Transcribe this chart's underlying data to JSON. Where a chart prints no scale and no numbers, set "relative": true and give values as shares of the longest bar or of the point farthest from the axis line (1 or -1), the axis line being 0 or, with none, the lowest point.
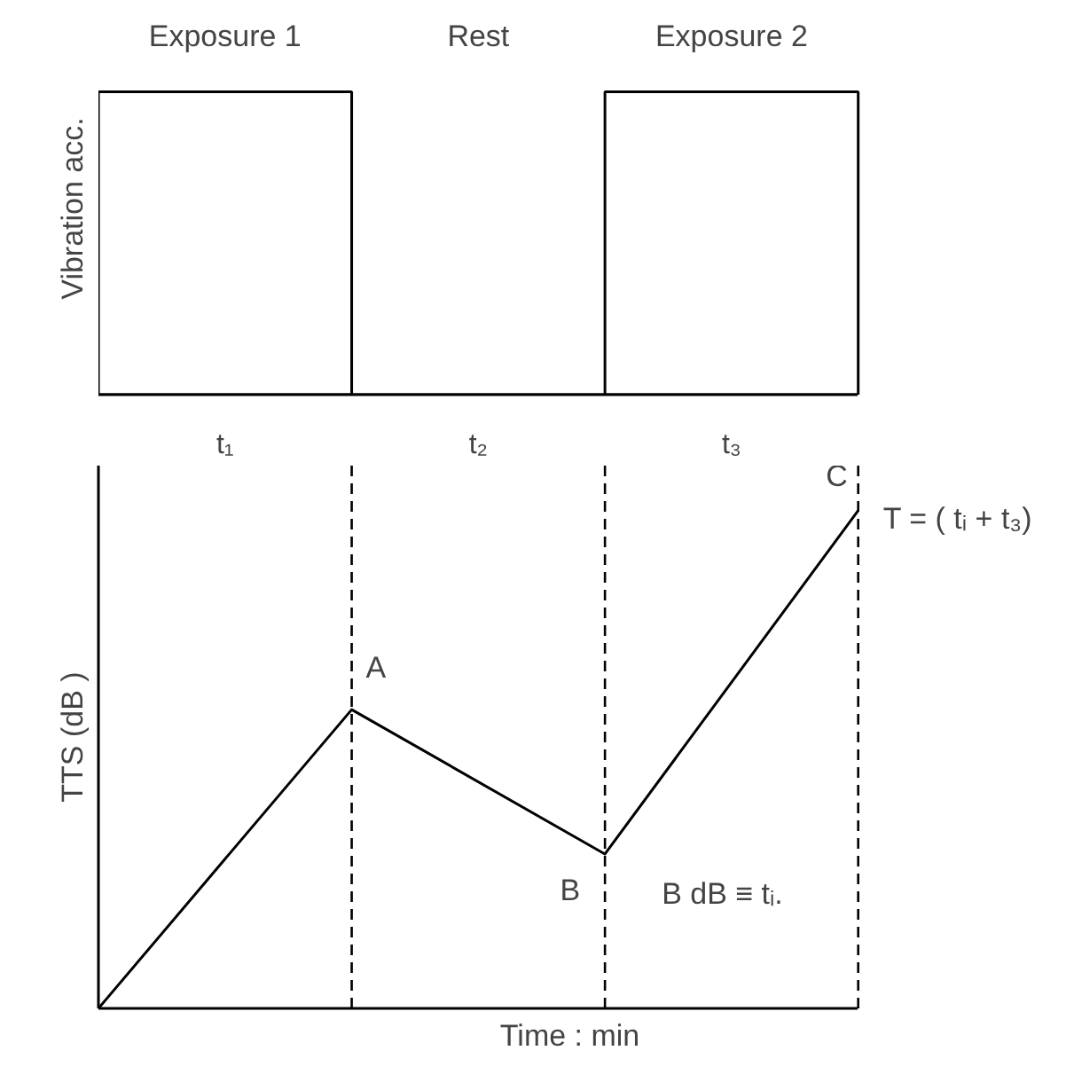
{
  "chart_data": [
    {
      "type": "bar",
      "relative": true,
      "ylabel": "Vibration acc.",
      "grid": false,
      "tick_labels": "x",
      "categories": [
        "t₁",
        "t₂",
        "t₃"
      ],
      "series": [
        {
          "color": "#ffffff",
          "values": [
            1,
            0,
            1
          ]
        }
      ],
      "annotations": [
        "Exposure 1",
        "Rest",
        "Exposure 2"
      ]
    },
    {
      "type": "line",
      "relative": true,
      "xlabel": "Time  :  min",
      "ylabel": "TTS (dB )",
      "grid": false,
      "tick_labels": false,
      "line_style": "solid",
      "categories": [
        null,
        null,
        null,
        null
      ],
      "series": [
        {
          "color": "#000000",
          "values": [
            0,
            0.6,
            0.31,
            1
          ]
        }
      ],
      "annotations": [
        "A",
        "B",
        "C",
        "T = ( tᵢ + t₃)",
        "B dB ≡ tᵢ."
      ]
    }
  ]
}
